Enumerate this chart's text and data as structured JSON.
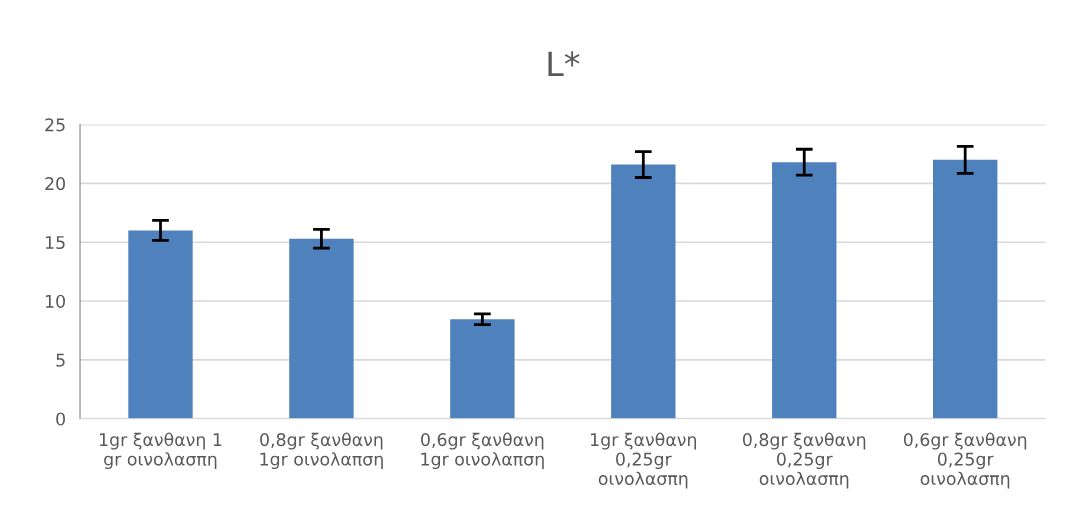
{
  "chart_data": {
    "type": "bar",
    "title": "L*",
    "categories": [
      "1gr ξανθανη 1\ngr οινολασπη",
      "0,8gr ξανθανη\n1gr οινολαπση",
      "0,6gr ξανθανη\n1gr οινολαπση",
      "1gr ξανθανη\n0,25gr\nοινολασπη",
      "0,8gr ξανθανη\n0,25gr\nοινολασπη",
      "0,6gr ξανθανη\n0,25gr\nοινολασπη"
    ],
    "values": [
      16.0,
      15.3,
      8.45,
      21.6,
      21.8,
      22.0
    ],
    "errors": [
      0.85,
      0.8,
      0.45,
      1.1,
      1.1,
      1.15
    ],
    "color": "#4f81bd",
    "ylim": [
      0,
      25
    ],
    "yticks": [
      0,
      5,
      10,
      15,
      20,
      25
    ],
    "grid": "y"
  }
}
